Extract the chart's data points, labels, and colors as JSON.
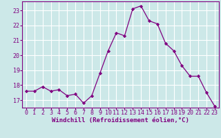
{
  "x": [
    0,
    1,
    2,
    3,
    4,
    5,
    6,
    7,
    8,
    9,
    10,
    11,
    12,
    13,
    14,
    15,
    16,
    17,
    18,
    19,
    20,
    21,
    22,
    23
  ],
  "y": [
    17.6,
    17.6,
    17.9,
    17.6,
    17.7,
    17.3,
    17.4,
    16.8,
    17.3,
    18.8,
    20.3,
    21.5,
    21.3,
    23.1,
    23.3,
    22.3,
    22.1,
    20.8,
    20.3,
    19.3,
    18.6,
    18.6,
    17.5,
    16.6
  ],
  "line_color": "#800080",
  "marker": "D",
  "marker_size": 2.2,
  "bg_color": "#cce8e8",
  "grid_color": "#ffffff",
  "xlabel": "Windchill (Refroidissement éolien,°C)",
  "xlim": [
    -0.5,
    23.5
  ],
  "ylim": [
    16.5,
    23.6
  ],
  "yticks": [
    17,
    18,
    19,
    20,
    21,
    22,
    23
  ],
  "xticks": [
    0,
    1,
    2,
    3,
    4,
    5,
    6,
    7,
    8,
    9,
    10,
    11,
    12,
    13,
    14,
    15,
    16,
    17,
    18,
    19,
    20,
    21,
    22,
    23
  ],
  "label_fontsize": 6.5,
  "tick_fontsize": 6.0
}
